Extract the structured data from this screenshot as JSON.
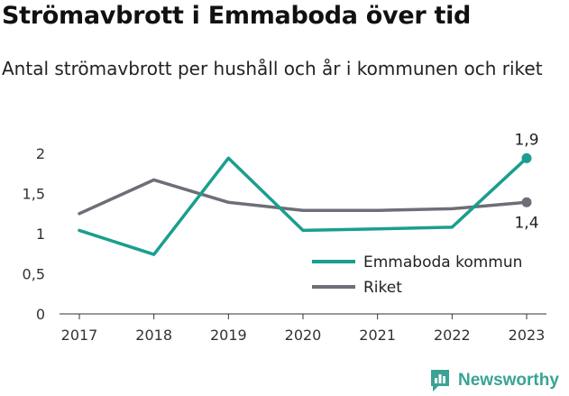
{
  "header": {
    "title": "Strömavbrott i Emmaboda över tid",
    "subtitle": "Antal strömavbrott per hushåll och år i kommunen och riket"
  },
  "brand": {
    "name": "Newsworthy",
    "icon": "newsworthy-logo-icon"
  },
  "colors": {
    "emmaboda": "#1a9e8f",
    "riket": "#6e6e78",
    "axis": "#333333",
    "grid": "#ffffff"
  },
  "chart_data": {
    "type": "line",
    "x": [
      "2017",
      "2018",
      "2019",
      "2020",
      "2021",
      "2022",
      "2023"
    ],
    "ylim": [
      0,
      2
    ],
    "yticks": [
      "0",
      "0,5",
      "1",
      "1,5",
      "2"
    ],
    "ytick_values": [
      0,
      0.5,
      1,
      1.5,
      2
    ],
    "grid": false,
    "legend_placement": "bottom-right",
    "series": [
      {
        "name": "Emmaboda kommun",
        "color": "#1a9e8f",
        "values": [
          1.04,
          0.74,
          1.94,
          1.04,
          1.06,
          1.08,
          1.94
        ],
        "end_label": "1,9"
      },
      {
        "name": "Riket",
        "color": "#6e6e78",
        "values": [
          1.25,
          1.67,
          1.39,
          1.29,
          1.29,
          1.31,
          1.39
        ],
        "end_label": "1,4"
      }
    ]
  }
}
